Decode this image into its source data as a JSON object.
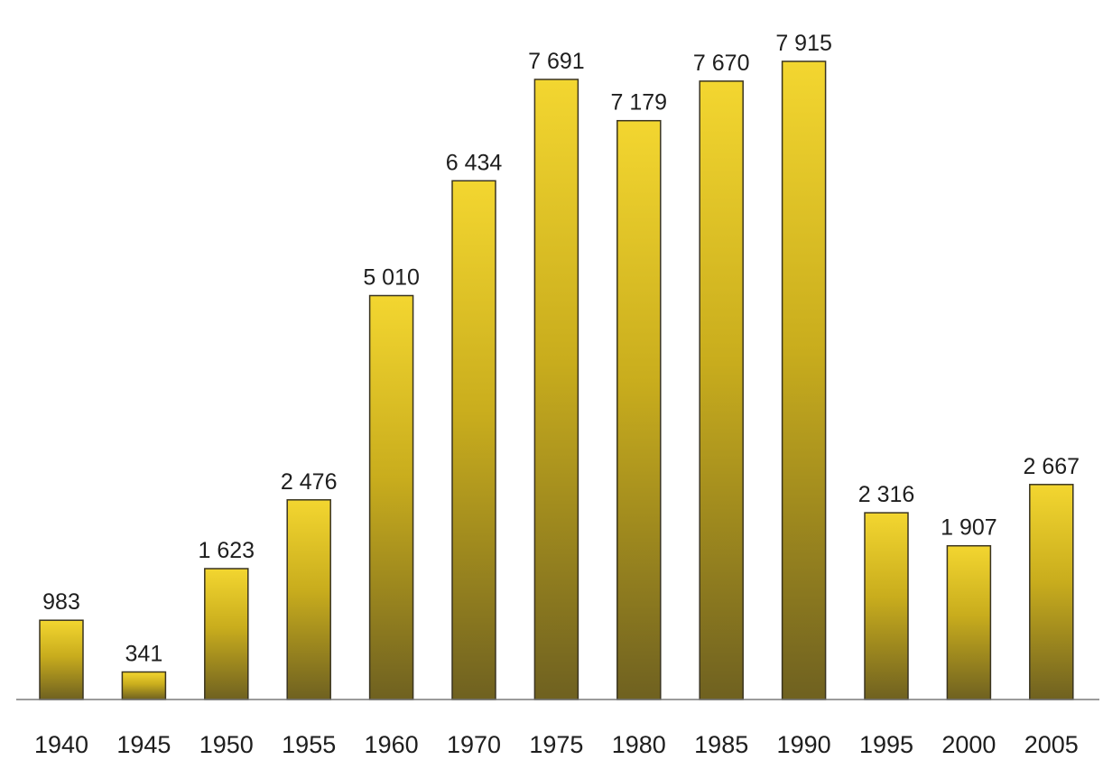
{
  "chart_data": {
    "type": "bar",
    "categories": [
      "1940",
      "1945",
      "1950",
      "1955",
      "1960",
      "1970",
      "1975",
      "1980",
      "1985",
      "1990",
      "1995",
      "2000",
      "2005"
    ],
    "values": [
      983,
      341,
      1623,
      2476,
      5010,
      6434,
      7691,
      7179,
      7670,
      7915,
      2316,
      1907,
      2667
    ],
    "value_labels": [
      "983",
      "341",
      "1 623",
      "2 476",
      "5 010",
      "6 434",
      "7 691",
      "7 179",
      "7 670",
      "7 915",
      "2 316",
      "1 907",
      "2 667"
    ],
    "title": "",
    "xlabel": "",
    "ylabel": "",
    "ylim": [
      0,
      7915
    ],
    "grid": false,
    "legend": "none",
    "colors": {
      "bar_top": "#f3d630",
      "bar_mid": "#c9ad1d",
      "bar_bottom": "#6f6120",
      "bar_edge": "#3a3420",
      "axis": "#7a7a7a",
      "text": "#1e1e1e"
    }
  }
}
